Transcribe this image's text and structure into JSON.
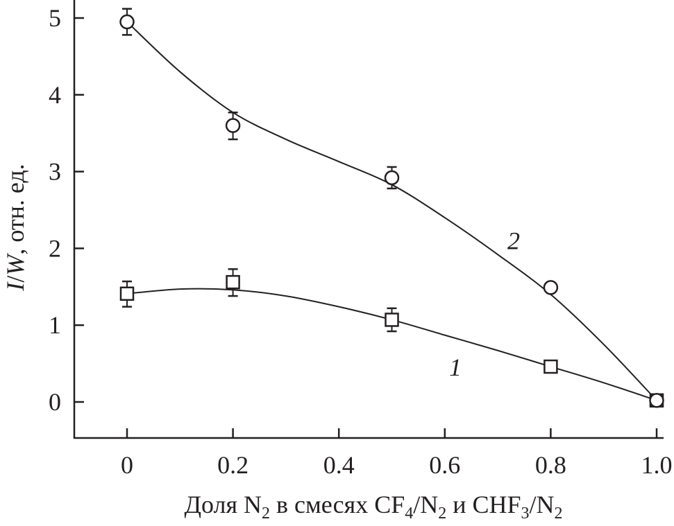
{
  "chart_data": {
    "type": "line",
    "xlabel": {
      "main": "Доля N",
      "sub1": "2",
      "mid1": " в смесях CF",
      "sub2": "4",
      "mid2": "/N",
      "sub3": "2",
      "mid3": " и CHF",
      "sub4": "3",
      "mid4": "/N",
      "sub5": "2"
    },
    "ylabel": {
      "italic1": "I",
      "slash": "/",
      "italic2": "W",
      "rest": ", отн. ед."
    },
    "xlim": [
      -0.1,
      1.02
    ],
    "ylim": [
      -0.45,
      5.2
    ],
    "x_ticks": [
      "0",
      "0.2",
      "0.4",
      "0.6",
      "0.8",
      "1.0"
    ],
    "x_tick_values": [
      0,
      0.2,
      0.4,
      0.6,
      0.8,
      1.0
    ],
    "y_ticks": [
      "0",
      "1",
      "2",
      "3",
      "4",
      "5"
    ],
    "y_tick_values": [
      0,
      1,
      2,
      3,
      4,
      5
    ],
    "grid": false,
    "series": [
      {
        "name": "1",
        "marker": "square",
        "x": [
          0,
          0.2,
          0.5,
          0.8,
          1.0
        ],
        "y": [
          1.41,
          1.56,
          1.07,
          0.46,
          0.02
        ],
        "err_low": [
          1.24,
          1.38,
          0.92,
          null,
          null
        ],
        "err_high": [
          1.57,
          1.73,
          1.22,
          null,
          null
        ],
        "fit_x": [
          0,
          0.1,
          0.2,
          0.3,
          0.4,
          0.5,
          0.6,
          0.7,
          0.8,
          0.9,
          1.0
        ],
        "fit_y": [
          1.41,
          1.47,
          1.46,
          1.38,
          1.24,
          1.07,
          0.87,
          0.67,
          0.46,
          0.25,
          0.02
        ],
        "label_pos": [
          0.62,
          0.45
        ]
      },
      {
        "name": "2",
        "marker": "circle",
        "x": [
          0,
          0.2,
          0.5,
          0.8,
          1.0
        ],
        "y": [
          4.95,
          3.6,
          2.92,
          1.49,
          0.02
        ],
        "err_low": [
          4.78,
          3.42,
          2.78,
          null,
          null
        ],
        "err_high": [
          5.12,
          3.77,
          3.06,
          null,
          null
        ],
        "fit_x": [
          0,
          0.1,
          0.2,
          0.3,
          0.4,
          0.5,
          0.6,
          0.7,
          0.8,
          0.9,
          1.0
        ],
        "fit_y": [
          4.95,
          4.3,
          3.77,
          3.42,
          3.13,
          2.83,
          2.4,
          1.92,
          1.4,
          0.75,
          0.02
        ],
        "label_pos": [
          0.73,
          2.1
        ]
      }
    ],
    "colors": {
      "ink": "#231f20",
      "background": "#ffffff"
    }
  }
}
